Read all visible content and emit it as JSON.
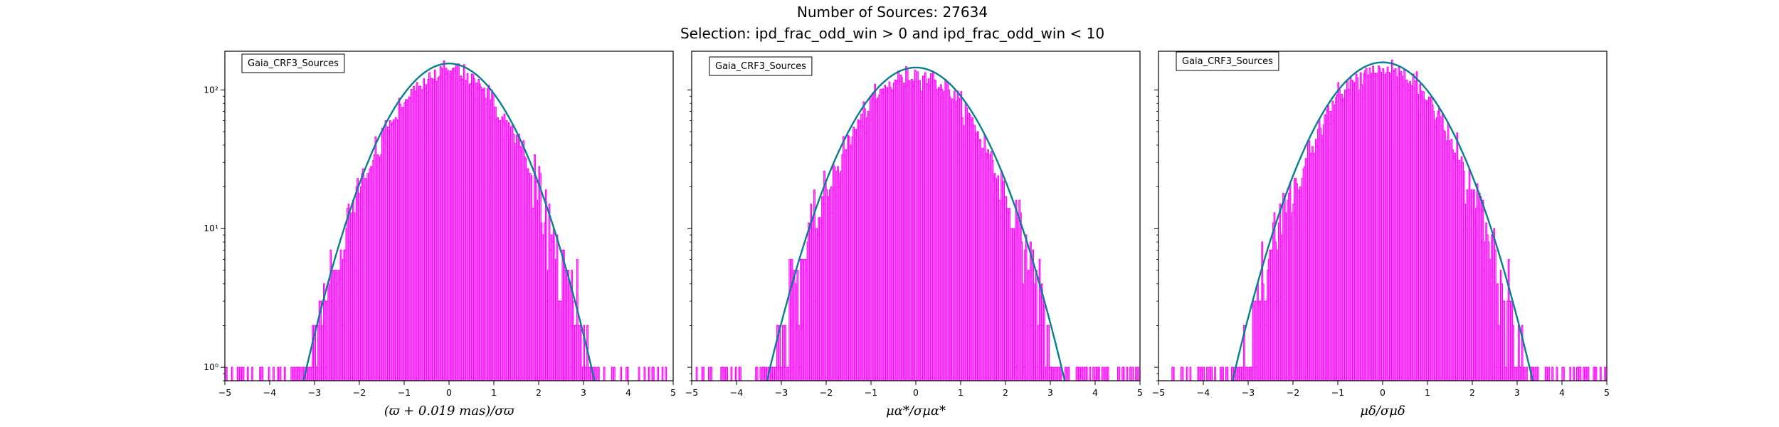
{
  "suptitle": {
    "line1": "Number of Sources: 27634",
    "line2": "Selection: ipd_frac_odd_win > 0 and ipd_frac_odd_win < 10"
  },
  "colors": {
    "histogram": "#ff00ff",
    "fit_teal": "#008080",
    "fit_blue": "#1f77b4",
    "axes": "#000000"
  },
  "chart_data": [
    {
      "type": "line",
      "title": "",
      "xlabel": "(ϖ + 0.019 mas)/σϖ",
      "ylabel": "",
      "xlim": [
        -5,
        5
      ],
      "ylim": [
        0.8,
        190
      ],
      "yscale": "log",
      "xticks": [
        "−5",
        "−4",
        "−3",
        "−2",
        "−1",
        "0",
        "1",
        "2",
        "3",
        "4",
        "5"
      ],
      "yticks": [
        "10⁰",
        "10¹",
        "10²"
      ],
      "legend": "Gaia_CRF3_Sources",
      "legend_loc": "upper-left",
      "series": [
        {
          "kind": "histogram",
          "peak": 130,
          "sigma": 1.0,
          "mean": 0.0,
          "tail_left": -5.0,
          "tail_right": 4.9
        },
        {
          "kind": "fit",
          "peak": 155,
          "sigma": 1.0,
          "mean": 0.0,
          "x_range": [
            -3.5,
            3.4
          ]
        }
      ]
    },
    {
      "type": "line",
      "title": "",
      "xlabel": "μα*/σμα*",
      "ylabel": "",
      "xlim": [
        -5,
        5
      ],
      "ylim": [
        0.8,
        190
      ],
      "yscale": "log",
      "xticks": [
        "−5",
        "−4",
        "−3",
        "−2",
        "−1",
        "0",
        "1",
        "2",
        "3",
        "4",
        "5"
      ],
      "yticks": [
        "10⁰",
        "10¹",
        "10²"
      ],
      "legend": "Gaia_CRF3_Sources",
      "legend_loc": "upper-left",
      "series": [
        {
          "kind": "histogram",
          "peak": 125,
          "sigma": 1.0,
          "mean": 0.0,
          "tail_left": -4.9,
          "tail_right": 5.0
        },
        {
          "kind": "fit",
          "peak": 145,
          "sigma": 1.03,
          "mean": 0.0,
          "x_range": [
            -3.5,
            3.6
          ]
        }
      ]
    },
    {
      "type": "line",
      "title": "",
      "xlabel": "μδ/σμδ",
      "ylabel": "",
      "xlim": [
        -5,
        5
      ],
      "ylim": [
        0.8,
        190
      ],
      "yscale": "log",
      "xticks": [
        "−5",
        "−4",
        "−3",
        "−2",
        "−1",
        "0",
        "1",
        "2",
        "3",
        "4",
        "5"
      ],
      "yticks": [
        "10⁰",
        "10¹",
        "10²"
      ],
      "legend": "Gaia_CRF3_Sources",
      "legend_loc": "upper-left",
      "series": [
        {
          "kind": "histogram",
          "peak": 135,
          "sigma": 1.0,
          "mean": 0.0,
          "tail_left": -4.7,
          "tail_right": 5.0
        },
        {
          "kind": "fit",
          "peak": 158,
          "sigma": 1.03,
          "mean": 0.0,
          "x_range": [
            -3.5,
            3.6
          ]
        }
      ]
    }
  ]
}
